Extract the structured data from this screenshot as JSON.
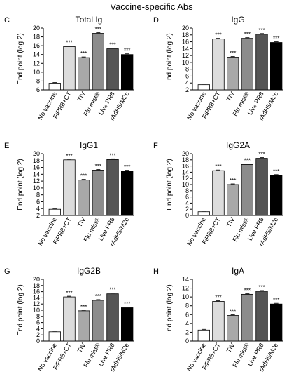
{
  "figure_title": "Vaccine-specific Abs",
  "chart_data": [
    {
      "type": "bar",
      "panel": "C",
      "title": "Total Ig",
      "xlabel": "",
      "ylabel": "End point (log 2)",
      "ylim": [
        6,
        20
      ],
      "yticks": [
        6,
        8,
        10,
        12,
        14,
        16,
        18,
        20
      ],
      "categories": [
        "No vaccine",
        "FiPR8+CT",
        "TIV",
        "Flu mist®",
        "Live PR8",
        "rAdH5/M2e"
      ],
      "values": [
        7.5,
        15.8,
        13.3,
        18.8,
        15.3,
        14.0
      ],
      "significance": [
        "",
        "***",
        "***",
        "***",
        "***",
        "***"
      ],
      "colors": [
        "#ffffff",
        "#dcdcdc",
        "#a8a8a8",
        "#8c8c8c",
        "#555555",
        "#000000"
      ]
    },
    {
      "type": "bar",
      "panel": "D",
      "title": "IgG",
      "xlabel": "",
      "ylabel": "End point (log 2)",
      "ylim": [
        2,
        20
      ],
      "yticks": [
        2,
        4,
        6,
        8,
        10,
        12,
        14,
        16,
        18,
        20
      ],
      "categories": [
        "No vaccine",
        "FiPR8+CT",
        "TIV",
        "Flu mist®",
        "Live PR8",
        "rAdH5/M2e"
      ],
      "values": [
        3.5,
        16.8,
        11.5,
        17.0,
        18.2,
        15.8
      ],
      "significance": [
        "",
        "***",
        "***",
        "***",
        "***",
        "***"
      ],
      "colors": [
        "#ffffff",
        "#dcdcdc",
        "#a8a8a8",
        "#8c8c8c",
        "#555555",
        "#000000"
      ]
    },
    {
      "type": "bar",
      "panel": "E",
      "title": "IgG1",
      "xlabel": "",
      "ylabel": "End point (log 2)",
      "ylim": [
        2,
        20
      ],
      "yticks": [
        2,
        4,
        6,
        8,
        10,
        12,
        14,
        16,
        18,
        20
      ],
      "categories": [
        "No vaccine",
        "FiPR8+CT",
        "TIV",
        "Flu mist®",
        "Live PR8",
        "rAdH5/M2e"
      ],
      "values": [
        3.8,
        18.2,
        12.3,
        15.2,
        18.3,
        15.0
      ],
      "significance": [
        "",
        "***",
        "***",
        "***",
        "***",
        "***"
      ],
      "colors": [
        "#ffffff",
        "#dcdcdc",
        "#a8a8a8",
        "#8c8c8c",
        "#555555",
        "#000000"
      ]
    },
    {
      "type": "bar",
      "panel": "F",
      "title": "IgG2A",
      "xlabel": "",
      "ylabel": "End point (log 2)",
      "ylim": [
        0,
        20
      ],
      "yticks": [
        0,
        2,
        4,
        6,
        8,
        10,
        12,
        14,
        16,
        18,
        20
      ],
      "categories": [
        "No vaccine",
        "FiPR8+CT",
        "TIV",
        "Flu mist®",
        "Live PR8",
        "rAdH5/M2e"
      ],
      "values": [
        1.2,
        14.5,
        10.0,
        16.5,
        18.5,
        13.0
      ],
      "significance": [
        "",
        "***",
        "***",
        "***",
        "***",
        "***"
      ],
      "colors": [
        "#ffffff",
        "#dcdcdc",
        "#a8a8a8",
        "#8c8c8c",
        "#555555",
        "#000000"
      ]
    },
    {
      "type": "bar",
      "panel": "G",
      "title": "IgG2B",
      "xlabel": "",
      "ylabel": "End point (log 2)",
      "ylim": [
        0,
        20
      ],
      "yticks": [
        0,
        2,
        4,
        6,
        8,
        10,
        12,
        14,
        16,
        18,
        20
      ],
      "categories": [
        "No vaccine",
        "FiPR8+CT",
        "TIV",
        "Flu mist®",
        "Live PR8",
        "rAdH5/M2e"
      ],
      "values": [
        3.0,
        14.3,
        9.8,
        13.2,
        15.3,
        10.8
      ],
      "significance": [
        "",
        "***",
        "***",
        "***",
        "***",
        "***"
      ],
      "colors": [
        "#ffffff",
        "#dcdcdc",
        "#a8a8a8",
        "#8c8c8c",
        "#555555",
        "#000000"
      ]
    },
    {
      "type": "bar",
      "panel": "H",
      "title": "IgA",
      "xlabel": "",
      "ylabel": "End point (log 2)",
      "ylim": [
        0,
        14
      ],
      "yticks": [
        0,
        2,
        4,
        6,
        8,
        10,
        12,
        14
      ],
      "categories": [
        "No vaccine",
        "FiPR8+CT",
        "TIV",
        "Flu mist®",
        "Live PR8",
        "rAdH5/M2e"
      ],
      "values": [
        2.5,
        9.0,
        5.8,
        10.6,
        11.3,
        8.4
      ],
      "significance": [
        "",
        "***",
        "***",
        "***",
        "***",
        "***"
      ],
      "colors": [
        "#ffffff",
        "#dcdcdc",
        "#a8a8a8",
        "#8c8c8c",
        "#555555",
        "#000000"
      ]
    }
  ]
}
